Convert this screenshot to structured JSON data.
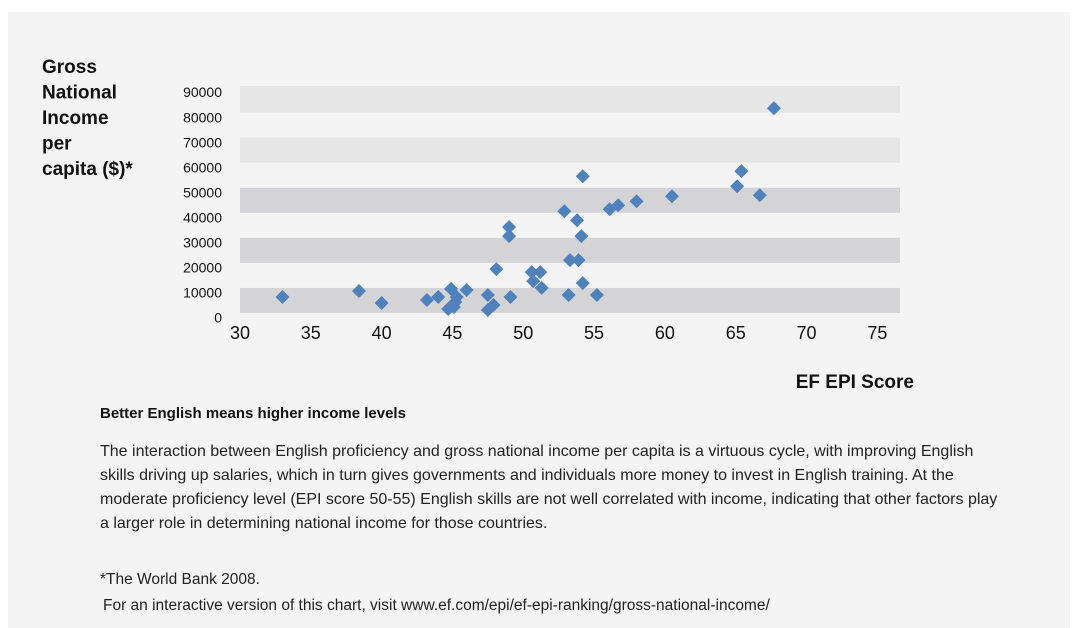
{
  "chart_data": {
    "type": "scatter",
    "ylabel_lines": [
      "Gross",
      "National",
      "Income",
      "per",
      "capita ($)*"
    ],
    "xlabel": "EF EPI Score",
    "color": "#4f81bd",
    "band_color": "#d4d4d6",
    "band_light_color": "#e6e6e7",
    "xlim": [
      30,
      76.6
    ],
    "xticks": [
      30,
      35,
      40,
      45,
      50,
      55,
      60,
      65,
      70,
      75
    ],
    "ylim": [
      0,
      93000
    ],
    "yticks": [
      0,
      10000,
      20000,
      30000,
      40000,
      50000,
      60000,
      70000,
      80000,
      90000
    ],
    "x": [
      33.0,
      38.4,
      40.0,
      43.2,
      44.0,
      44.9,
      44.7,
      45.2,
      45.1,
      45.3,
      46.0,
      47.5,
      47.5,
      47.9,
      48.1,
      49.1,
      49.0,
      49.0,
      50.6,
      50.7,
      51.2,
      51.3,
      52.9,
      53.2,
      53.3,
      53.9,
      53.8,
      54.1,
      54.2,
      54.2,
      55.2,
      56.1,
      56.7,
      58.0,
      60.5,
      65.4,
      65.1,
      66.7,
      67.7
    ],
    "values": [
      8800,
      11200,
      6400,
      7600,
      8800,
      12000,
      4000,
      6800,
      4800,
      8800,
      11600,
      9600,
      3600,
      5600,
      19900,
      8800,
      36700,
      33100,
      18700,
      15100,
      18700,
      12400,
      43000,
      9600,
      23500,
      23500,
      39400,
      33100,
      57000,
      14300,
      9600,
      43800,
      45400,
      47000,
      49000,
      59000,
      53000,
      49400,
      84100
    ]
  },
  "text": {
    "heading": "Better English means higher income levels",
    "paragraph": "The interaction between English proficiency and gross national income per capita is a virtuous cycle, with improving English skills driving up salaries, which in turn gives governments and individuals more money to invest in English training.  At the moderate proficiency level (EPI score 50-55) English skills are not well correlated with income, indicating that other factors play a larger role in determining national income for those countries.",
    "footnote": "*The World Bank 2008.",
    "link_note": "For an interactive version of this chart, visit www.ef.com/epi/ef-epi-ranking/gross-national-income/"
  }
}
